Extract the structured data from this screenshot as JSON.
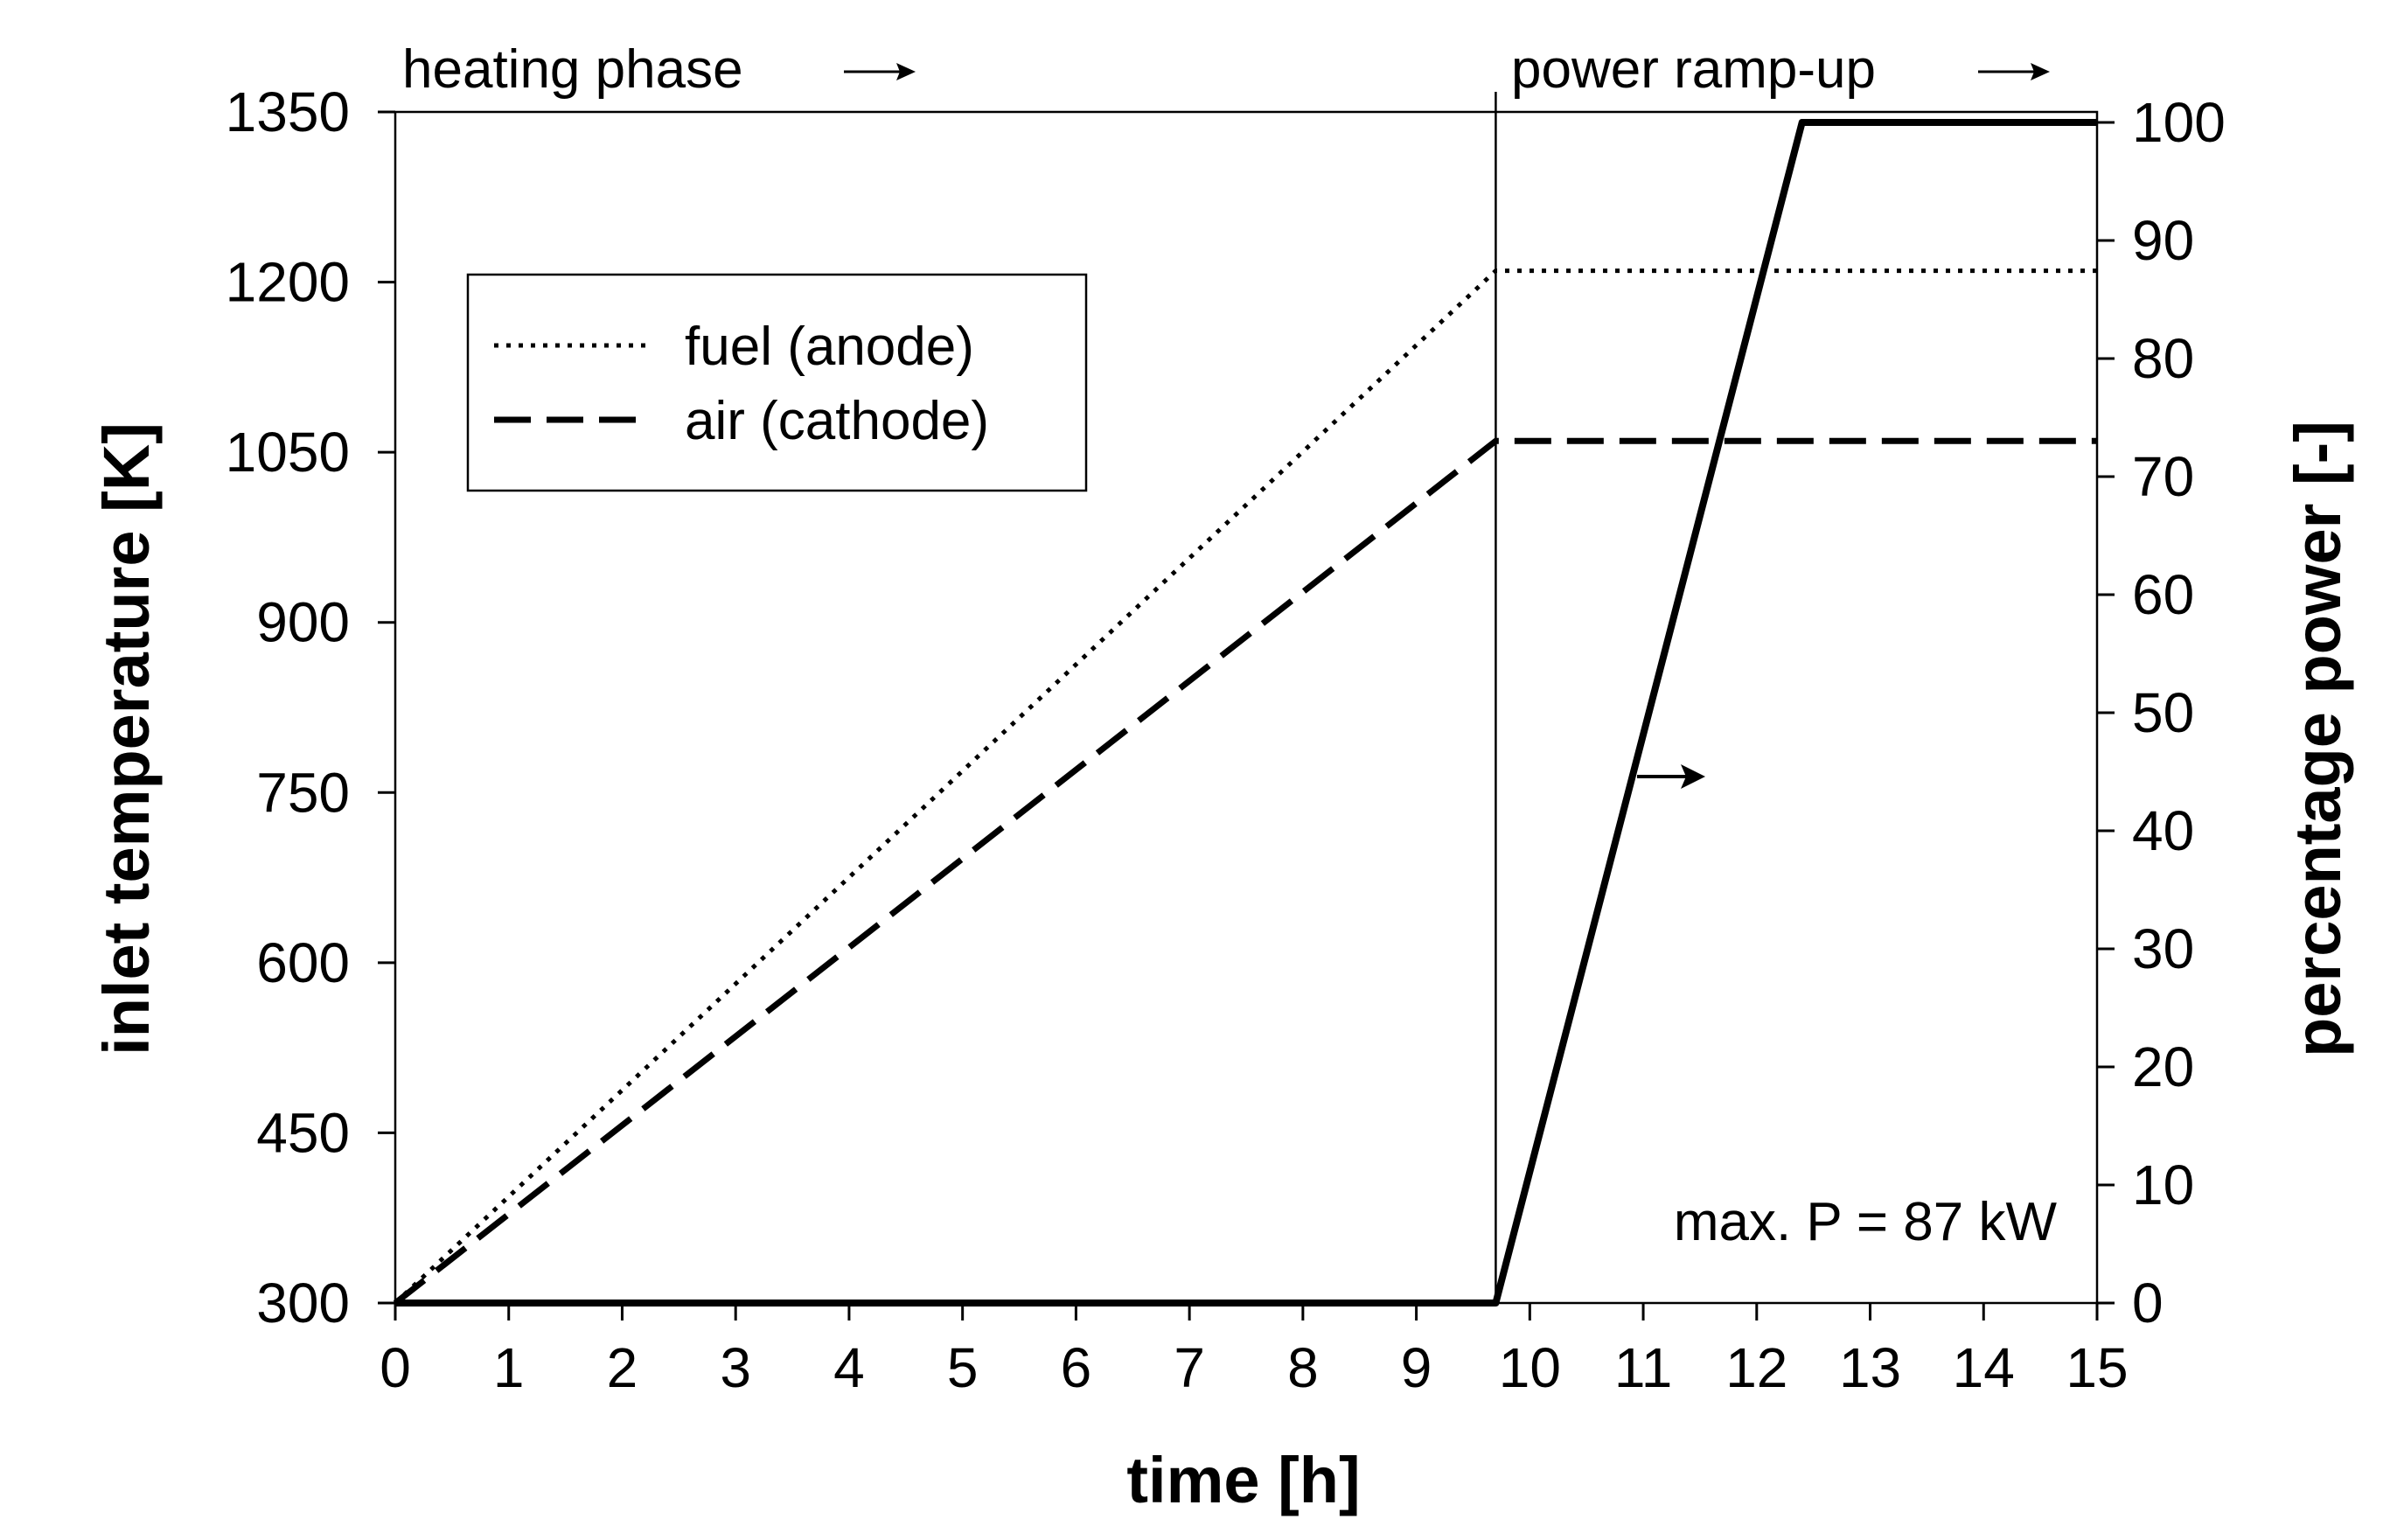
{
  "chart_data": {
    "type": "line",
    "x": [
      0,
      9.7,
      12.4,
      15
    ],
    "series": [
      {
        "name": "fuel (anode)",
        "style": "dotted",
        "axis": "left",
        "points": [
          [
            0,
            300
          ],
          [
            9.7,
            1210
          ],
          [
            15,
            1210
          ]
        ]
      },
      {
        "name": "air (cathode)",
        "style": "dashed",
        "axis": "left",
        "points": [
          [
            0,
            300
          ],
          [
            9.7,
            1060
          ],
          [
            15,
            1060
          ]
        ]
      },
      {
        "name": "percentage power",
        "style": "solid",
        "axis": "right",
        "points": [
          [
            0,
            0
          ],
          [
            9.7,
            0
          ],
          [
            12.4,
            100
          ],
          [
            15,
            100
          ]
        ]
      }
    ],
    "xlabel": "time [h]",
    "ylabel": "inlet temperature [K]",
    "y2label": "percentage power [-]",
    "xlim": [
      0,
      15
    ],
    "ylim": [
      300,
      1350
    ],
    "y2lim": [
      0,
      100
    ],
    "xticks": [
      0,
      1,
      2,
      3,
      4,
      5,
      6,
      7,
      8,
      9,
      10,
      11,
      12,
      13,
      14,
      15
    ],
    "yticks": [
      300,
      450,
      600,
      750,
      900,
      1050,
      1200,
      1350
    ],
    "y2ticks": [
      0,
      10,
      20,
      30,
      40,
      50,
      60,
      70,
      80,
      90,
      100
    ],
    "phase_boundary": 9.7,
    "annotations": {
      "heating_phase": "heating phase",
      "power_ramp": "power ramp-up",
      "max_power": "max. P = 87 kW"
    },
    "legend": {
      "position": "top-left",
      "entries": [
        "fuel (anode)",
        "air (cathode)"
      ]
    },
    "grid": false
  }
}
